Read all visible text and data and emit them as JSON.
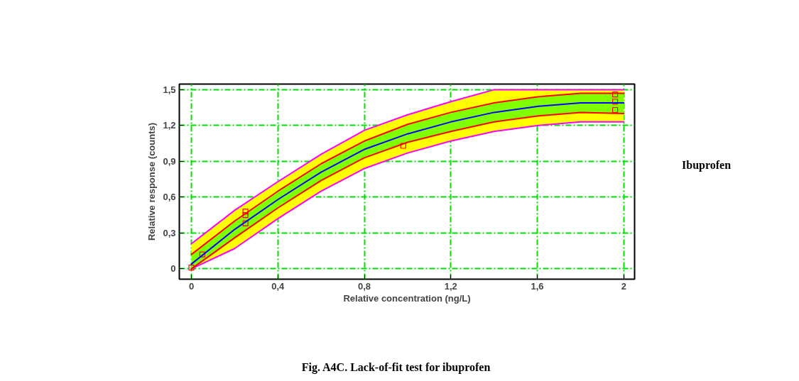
{
  "chart_data": {
    "type": "line",
    "xlabel": "Relative concentration (ng/L)",
    "ylabel": "Relative response (counts)",
    "annotations": [
      "Ibuprofen",
      "Fig. A4C. Lack-of-fit test for ibuprofen"
    ],
    "x": [
      0,
      0.2,
      0.4,
      0.6,
      0.8,
      1.0,
      1.2,
      1.4,
      1.6,
      1.8,
      2.0
    ],
    "series": [
      {
        "color": "#ffff00",
        "values": [
          null,
          null,
          null,
          null,
          null,
          null,
          null,
          null,
          null,
          null,
          null
        ],
        "lower": [
          0,
          0.17,
          0.42,
          0.65,
          0.84,
          0.97,
          1.07,
          1.15,
          1.2,
          1.23,
          1.23
        ],
        "upper": [
          0.21,
          0.49,
          0.73,
          0.96,
          1.16,
          1.29,
          1.4,
          1.5,
          1.5,
          1.5,
          1.5
        ]
      },
      {
        "color": "#80ff00",
        "values": [
          null,
          null,
          null,
          null,
          null,
          null,
          null,
          null,
          null,
          null,
          null
        ],
        "lower": [
          0,
          0.26,
          0.51,
          0.74,
          0.93,
          1.06,
          1.15,
          1.23,
          1.28,
          1.31,
          1.3
        ],
        "upper": [
          0.12,
          0.4,
          0.65,
          0.88,
          1.07,
          1.21,
          1.31,
          1.39,
          1.44,
          1.47,
          1.47
        ]
      },
      {
        "color": "#ff00ff",
        "values": [
          0.21,
          0.49,
          0.73,
          0.96,
          1.16,
          1.29,
          1.4,
          1.5,
          1.5,
          1.5,
          1.5
        ]
      },
      {
        "color": "#ff00ff",
        "values": [
          0,
          0.17,
          0.42,
          0.65,
          0.84,
          0.97,
          1.07,
          1.15,
          1.2,
          1.23,
          1.23
        ]
      },
      {
        "color": "#ff0000",
        "values": [
          0.12,
          0.4,
          0.65,
          0.88,
          1.07,
          1.21,
          1.31,
          1.39,
          1.44,
          1.47,
          1.47
        ]
      },
      {
        "color": "#ff0000",
        "values": [
          0,
          0.26,
          0.51,
          0.74,
          0.93,
          1.06,
          1.15,
          1.23,
          1.28,
          1.31,
          1.3
        ]
      },
      {
        "color": "#0000ff",
        "values": [
          0.04,
          0.33,
          0.58,
          0.81,
          1.0,
          1.13,
          1.23,
          1.31,
          1.36,
          1.39,
          1.39
        ]
      },
      {
        "type": "scatter",
        "color": "#ff0000",
        "marker": "square",
        "x": [
          0.0,
          0.05,
          0.25,
          0.25,
          0.25,
          0.98,
          1.96,
          1.96,
          1.96
        ],
        "values": [
          0.01,
          0.12,
          0.48,
          0.45,
          0.38,
          1.03,
          1.46,
          1.4,
          1.33
        ]
      }
    ],
    "xlim": [
      -0.056,
      2.05
    ],
    "ylim": [
      -0.087,
      1.547
    ],
    "xticks": [
      0,
      {
        "value": 0.4,
        "label": "0,4"
      },
      {
        "value": 0.8,
        "label": "0,8"
      },
      {
        "value": 1.2,
        "label": "1,2"
      },
      {
        "value": 1.6,
        "label": "1,6"
      },
      2
    ],
    "yticks": [
      0,
      {
        "value": 0.3,
        "label": "0,3"
      },
      {
        "value": 0.6,
        "label": "0,6"
      },
      {
        "value": 0.9,
        "label": "0,9"
      },
      {
        "value": 1.2,
        "label": "1,2"
      },
      {
        "value": 1.5,
        "label": "1,5"
      }
    ],
    "grid": true
  }
}
